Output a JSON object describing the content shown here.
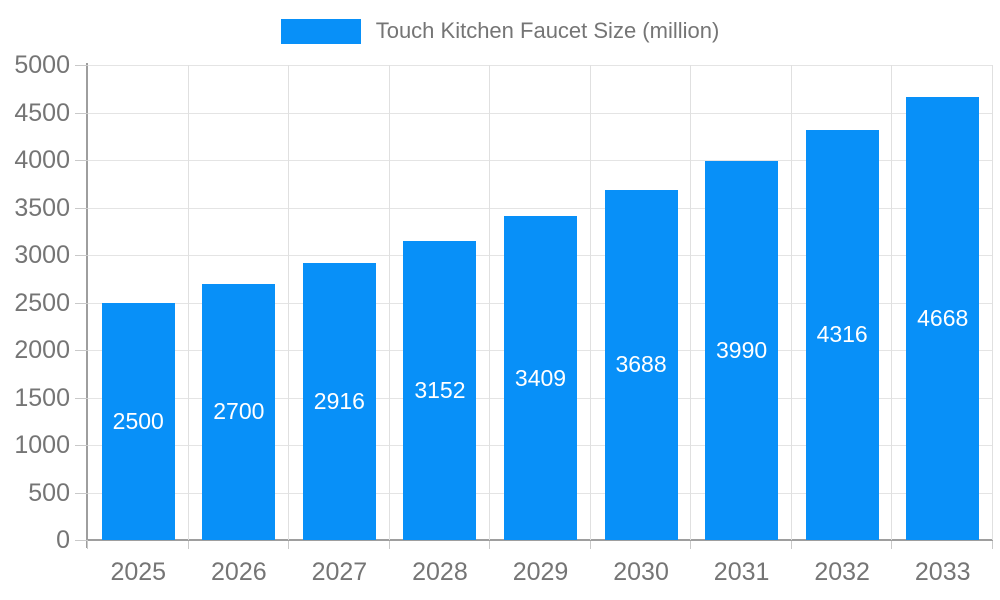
{
  "chart_data": {
    "type": "bar",
    "title": "Touch Kitchen Faucet Size (million)",
    "series": [
      {
        "name": "Touch Kitchen Faucet Size (million)",
        "values": [
          2500,
          2700,
          2916,
          3152,
          3409,
          3688,
          3990,
          4316,
          4668
        ]
      }
    ],
    "categories": [
      "2025",
      "2026",
      "2027",
      "2028",
      "2029",
      "2030",
      "2031",
      "2032",
      "2033"
    ],
    "values": [
      2500,
      2700,
      2916,
      3152,
      3409,
      3688,
      3990,
      4316,
      4668
    ],
    "xlabel": "",
    "ylabel": "",
    "ylim": [
      0,
      5000
    ],
    "ytick_step": 500,
    "yticks": [
      0,
      500,
      1000,
      1500,
      2000,
      2500,
      3000,
      3500,
      4000,
      4500,
      5000
    ],
    "grid": true,
    "legend_position": "top",
    "value_labels_shown": true,
    "colors": {
      "bar": "#0890f8",
      "h_gridline": "#e4e4e4",
      "v_gridline": "#e0e0e0",
      "axis_line": "#9e9e9e",
      "tick_mark": "#c9c9c9",
      "tick_label_text": "#757575",
      "legend_text": "#757575",
      "value_label_text": "#ffffff",
      "background": "#ffffff"
    }
  }
}
